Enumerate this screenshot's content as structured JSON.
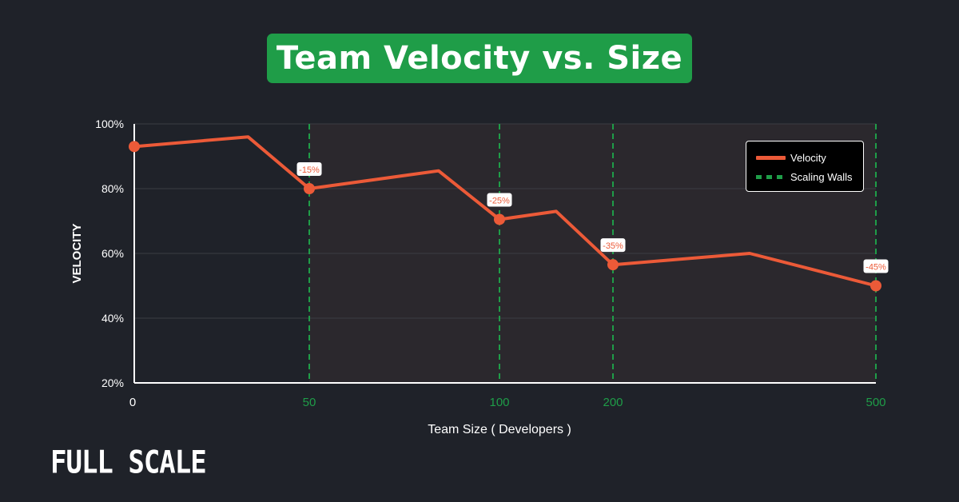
{
  "title": "Team Velocity vs. Size",
  "brand": "FULL SCALE",
  "colors": {
    "background": "#1f2229",
    "title_bg": "#1f9d48",
    "line": "#ec5a38",
    "wall": "#1f9d48",
    "shaded": "#2b282d"
  },
  "chart_data": {
    "type": "line",
    "xlabel": "Team Size ( Developers )",
    "ylabel": "VELOCITY",
    "x_ticks": [
      "0",
      "50",
      "100",
      "200",
      "500"
    ],
    "y_ticks": [
      "100%",
      "80%",
      "60%",
      "40%",
      "20%"
    ],
    "ylim": [
      20,
      100
    ],
    "grid": "horizontal",
    "series": [
      {
        "name": "Velocity",
        "points": [
          {
            "tick": 0,
            "y": 93,
            "marker": true
          },
          {
            "tick": 0.65,
            "y": 96,
            "marker": false
          },
          {
            "tick": 1,
            "y": 80,
            "marker": true,
            "label": "-15%"
          },
          {
            "tick": 1.68,
            "y": 85.5,
            "marker": false
          },
          {
            "tick": 2,
            "y": 70.5,
            "marker": true,
            "label": "-25%"
          },
          {
            "tick": 2.5,
            "y": 73,
            "marker": false
          },
          {
            "tick": 3,
            "y": 56.5,
            "marker": true,
            "label": "-35%"
          },
          {
            "tick": 3.52,
            "y": 60,
            "marker": false
          },
          {
            "tick": 4,
            "y": 50,
            "marker": true,
            "label": "-45%"
          }
        ]
      }
    ],
    "scaling_walls": [
      "50",
      "100",
      "200",
      "500"
    ],
    "legend": {
      "position": "top-right",
      "entries": [
        "Velocity",
        "Scaling Walls"
      ]
    }
  }
}
